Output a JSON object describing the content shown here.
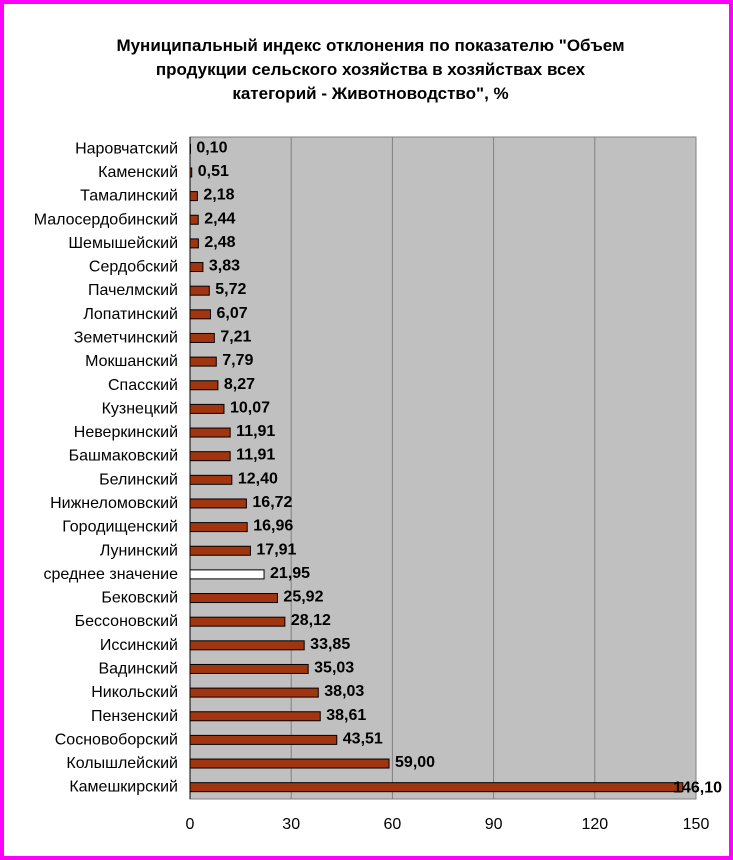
{
  "chart_data": {
    "type": "bar",
    "orientation": "horizontal",
    "title_lines": [
      "Муниципальный индекс отклонения по показателю \"Объем",
      "продукции сельского хозяйства в хозяйствах всех",
      "категорий - Животноводство\", %"
    ],
    "xlabel": "",
    "ylabel": "",
    "xlim": [
      0,
      150
    ],
    "x_ticks": [
      0,
      30,
      60,
      90,
      120,
      150
    ],
    "grid": "vertical",
    "legend": "none",
    "categories": [
      "Наровчатский",
      "Каменский",
      "Тамалинский",
      "Малосердобинский",
      "Шемышейский",
      "Сердобский",
      "Пачелмский",
      "Лопатинский",
      "Земетчинский",
      "Мокшанский",
      "Спасский",
      "Кузнецкий",
      "Неверкинский ",
      "Башмаковский",
      "Белинский",
      "Нижнеломовский",
      "Городищенский",
      "Лунинский",
      "среднее значение",
      "Бековский",
      "Бессоновский",
      "Иссинский",
      "Вадинский",
      "Никольский",
      "Пензенский",
      "Сосновоборский",
      "Колышлейский",
      "Камешкирский"
    ],
    "values": [
      0.1,
      0.51,
      2.18,
      2.44,
      2.48,
      3.83,
      5.72,
      6.07,
      7.21,
      7.79,
      8.27,
      10.07,
      11.91,
      11.91,
      12.4,
      16.72,
      16.96,
      17.91,
      21.95,
      25.92,
      28.12,
      33.85,
      35.03,
      38.03,
      38.61,
      43.51,
      59.0,
      146.1
    ],
    "value_labels": [
      "0,10",
      "0,51",
      "2,18",
      "2,44",
      "2,48",
      "3,83",
      "5,72",
      "6,07",
      "7,21",
      "7,79",
      "8,27",
      "10,07",
      "11,91",
      "11,91",
      "12,40",
      "16,72",
      "16,96",
      "17,91",
      "21,95",
      "25,92",
      "28,12",
      "33,85",
      "35,03",
      "38,03",
      "38,61",
      "43,51",
      "59,00",
      "146,10"
    ],
    "highlight_category": "среднее значение",
    "colors": {
      "bar": "#a0350f",
      "highlight_bar": "#ffffff",
      "plot_background": "#c0c0c0",
      "gridline": "#808080",
      "frame_border": "#ff00ff"
    }
  }
}
